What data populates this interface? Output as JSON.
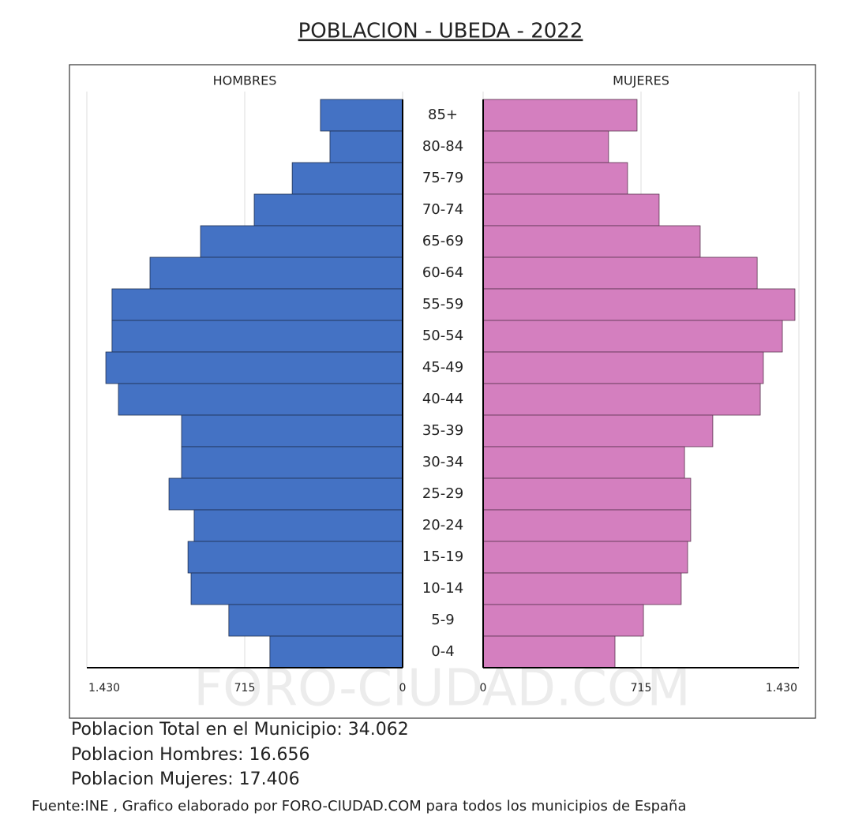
{
  "chart_data": {
    "type": "pyramid",
    "title": "POBLACION - UBEDA - 2022",
    "categories": [
      "85+",
      "80-84",
      "75-79",
      "70-74",
      "65-69",
      "60-64",
      "55-59",
      "50-54",
      "45-49",
      "40-44",
      "35-39",
      "30-34",
      "25-29",
      "20-24",
      "15-19",
      "10-14",
      "5-9",
      "0-4"
    ],
    "series": [
      {
        "name": "HOMBRES",
        "color": "#4472c4",
        "values": [
          372,
          329,
          500,
          672,
          915,
          1144,
          1316,
          1316,
          1344,
          1287,
          1001,
          1001,
          1058,
          944,
          972,
          958,
          787,
          601
        ]
      },
      {
        "name": "MUJERES",
        "color": "#d47fbf",
        "values": [
          697,
          568,
          654,
          797,
          983,
          1241,
          1412,
          1355,
          1269,
          1255,
          1040,
          912,
          940,
          940,
          926,
          897,
          726,
          597
        ]
      }
    ],
    "xlim": [
      0,
      1430
    ],
    "xticks": [
      0,
      715,
      {
        "value": 1430,
        "label": "1.430"
      }
    ],
    "grid": true,
    "watermark": "FORO-CIUDAD.COM",
    "summary": [
      "Poblacion Total en el Municipio: 34.062",
      "Poblacion Hombres: 16.656",
      "Poblacion Mujeres: 17.406"
    ],
    "source": "Fuente:INE , Grafico elaborado por FORO-CIUDAD.COM para todos los municipios de España"
  }
}
